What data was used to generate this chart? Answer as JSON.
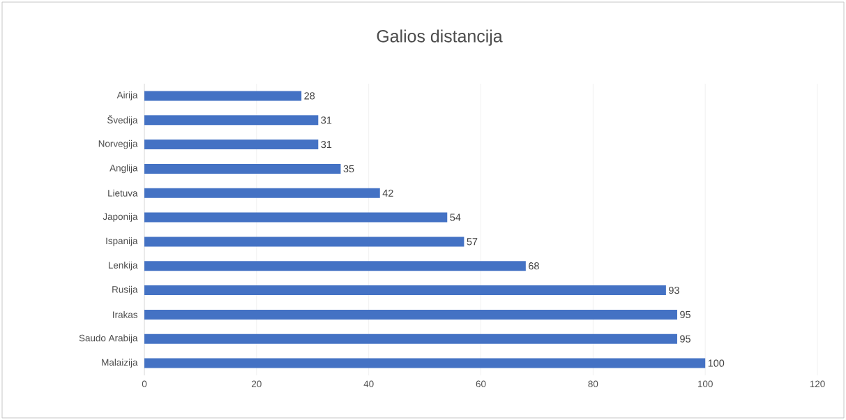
{
  "chart_data": {
    "type": "bar",
    "orientation": "horizontal",
    "title": "Galios distancija",
    "categories": [
      "Airija",
      "Švedija",
      "Norvegija",
      "Anglija",
      "Lietuva",
      "Japonija",
      "Ispanija",
      "Lenkija",
      "Rusija",
      "Irakas",
      "Saudo Arabija",
      "Malaizija"
    ],
    "values": [
      28,
      31,
      31,
      35,
      42,
      54,
      57,
      68,
      93,
      95,
      95,
      100
    ],
    "color": "#4472c4",
    "xlim": [
      0,
      120
    ],
    "xticks": [
      0,
      20,
      40,
      60,
      80,
      100,
      120
    ],
    "grid": "x",
    "data_labels": true
  }
}
